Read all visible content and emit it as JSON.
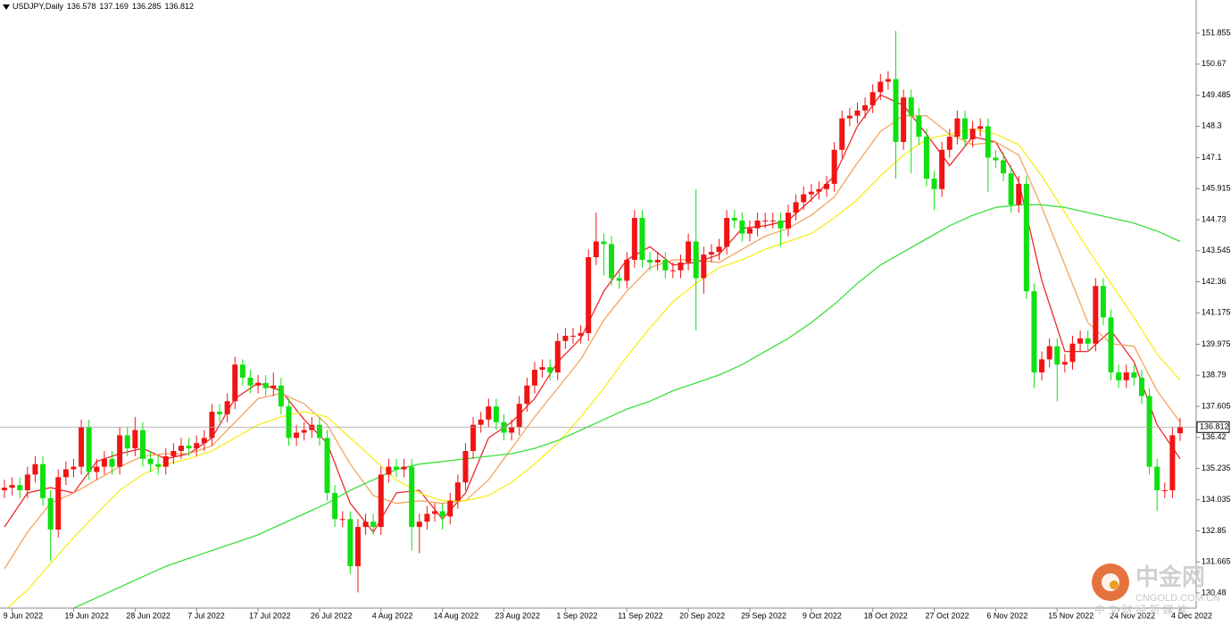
{
  "chart_data": {
    "type": "candlestick",
    "title": "USDJPY,Daily",
    "up_color": "#f01414",
    "down_color": "#10e010",
    "ylim": [
      129.9,
      153.12
    ],
    "yticks": [
      151.855,
      150.67,
      149.485,
      148.3,
      147.1,
      145.915,
      144.73,
      143.545,
      142.36,
      141.175,
      139.975,
      138.79,
      137.605,
      136.42,
      135.235,
      134.035,
      132.85,
      131.665,
      130.48
    ],
    "categories": [
      null,
      "9 Jun 2022",
      null,
      null,
      null,
      null,
      null,
      null,
      null,
      "19 Jun 2022",
      null,
      null,
      null,
      null,
      null,
      null,
      null,
      "28 Jun 2022",
      null,
      null,
      null,
      null,
      null,
      null,
      null,
      "7 Jul 2022",
      null,
      null,
      null,
      null,
      null,
      null,
      null,
      "17 Jul 2022",
      null,
      null,
      null,
      null,
      null,
      null,
      null,
      "26 Jul 2022",
      null,
      null,
      null,
      null,
      null,
      null,
      null,
      "4 Aug 2022",
      null,
      null,
      null,
      null,
      null,
      null,
      null,
      "14 Aug 2022",
      null,
      null,
      null,
      null,
      null,
      null,
      null,
      "23 Aug 2022",
      null,
      null,
      null,
      null,
      null,
      null,
      null,
      "1 Sep 2022",
      null,
      null,
      null,
      null,
      null,
      null,
      null,
      "11 Sep 2022",
      null,
      null,
      null,
      null,
      null,
      null,
      null,
      "20 Sep 2022",
      null,
      null,
      null,
      null,
      null,
      null,
      null,
      "29 Sep 2022",
      null,
      null,
      null,
      null,
      null,
      null,
      null,
      "9 Oct 2022",
      null,
      null,
      null,
      null,
      null,
      null,
      null,
      "18 Oct 2022",
      null,
      null,
      null,
      null,
      null,
      null,
      null,
      "27 Oct 2022",
      null,
      null,
      null,
      null,
      null,
      null,
      null,
      "6 Nov 2022",
      null,
      null,
      null,
      null,
      null,
      null,
      null,
      "15 Nov 2022",
      null,
      null,
      null,
      null,
      null,
      null,
      null,
      "24 Nov 2022",
      null,
      null,
      null,
      null,
      null,
      null,
      null,
      "4 Dec 2022"
    ],
    "open": [
      134.4,
      134.5,
      134.6,
      134.4,
      135.0,
      135.4,
      134.1,
      132.9,
      134.9,
      135.2,
      135.3,
      136.8,
      135.1,
      135.3,
      135.6,
      135.3,
      136.5,
      136.0,
      136.7,
      135.6,
      135.4,
      135.3,
      135.7,
      135.9,
      136.1,
      136.0,
      136.2,
      136.4,
      137.4,
      137.3,
      137.8,
      139.2,
      138.7,
      138.4,
      138.5,
      138.3,
      138.4,
      137.6,
      136.4,
      136.6,
      136.7,
      136.9,
      136.4,
      134.3,
      133.3,
      133.3,
      131.5,
      133.0,
      133.2,
      133.0,
      135.0,
      135.3,
      135.2,
      135.3,
      133.0,
      133.2,
      133.5,
      133.6,
      133.4,
      134.0,
      134.7,
      135.9,
      136.9,
      137.1,
      137.6,
      137.0,
      136.6,
      136.8,
      137.7,
      138.4,
      139.0,
      139.1,
      138.9,
      140.1,
      140.3,
      140.3,
      140.4,
      143.3,
      143.9,
      143.8,
      142.5,
      142.4,
      143.2,
      144.8,
      143.2,
      143.1,
      143.2,
      142.8,
      142.8,
      143.1,
      143.9,
      142.5,
      143.4,
      143.5,
      143.7,
      144.8,
      144.7,
      144.2,
      144.4,
      144.7,
      144.7,
      144.7,
      144.4,
      145.0,
      145.4,
      145.7,
      145.8,
      145.9,
      146.1,
      147.4,
      148.6,
      148.7,
      148.9,
      149.1,
      149.6,
      150.0,
      150.1,
      147.7,
      149.4,
      148.7,
      147.9,
      146.3,
      145.9,
      147.4,
      147.9,
      148.6,
      147.8,
      148.2,
      148.3,
      147.1,
      147.0,
      146.5,
      145.3,
      146.1,
      142.0,
      138.9,
      139.4,
      139.9,
      139.2,
      139.3,
      140.0,
      140.2,
      140.0,
      142.2,
      141.0,
      138.9,
      138.6,
      138.9,
      138.7,
      138.0,
      135.3,
      134.4,
      134.4,
      136.578
    ],
    "high": [
      134.8,
      134.9,
      134.9,
      135.3,
      135.7,
      135.7,
      134.4,
      135.2,
      135.5,
      135.6,
      137.1,
      137.1,
      135.6,
      135.9,
      135.9,
      136.8,
      136.8,
      137.2,
      137.0,
      135.9,
      135.7,
      136.0,
      136.2,
      136.4,
      136.4,
      136.5,
      136.7,
      137.7,
      137.7,
      138.1,
      139.5,
      139.4,
      139.0,
      138.8,
      138.8,
      138.9,
      138.7,
      137.9,
      136.9,
      137.0,
      137.2,
      137.2,
      136.7,
      134.6,
      133.6,
      133.6,
      133.3,
      133.5,
      133.5,
      135.3,
      135.6,
      135.6,
      135.6,
      135.6,
      133.5,
      133.8,
      133.9,
      133.9,
      134.3,
      135.0,
      136.2,
      137.2,
      137.4,
      137.9,
      137.9,
      137.3,
      137.1,
      138.0,
      138.7,
      139.3,
      139.4,
      139.4,
      140.4,
      140.6,
      140.6,
      140.7,
      143.6,
      145.0,
      144.2,
      144.1,
      142.8,
      143.5,
      145.1,
      145.1,
      143.5,
      143.5,
      143.5,
      143.1,
      143.4,
      144.2,
      145.9,
      143.7,
      143.8,
      144.0,
      145.1,
      145.1,
      145.0,
      144.7,
      145.0,
      145.0,
      145.0,
      145.0,
      145.3,
      145.7,
      146.0,
      146.1,
      146.2,
      146.4,
      147.7,
      148.9,
      149.0,
      149.2,
      149.4,
      149.9,
      150.3,
      150.4,
      151.94,
      149.7,
      149.7,
      149.0,
      148.2,
      146.6,
      147.7,
      148.2,
      148.9,
      148.9,
      148.5,
      148.6,
      148.6,
      147.4,
      147.3,
      146.8,
      146.4,
      146.4,
      142.3,
      139.7,
      140.2,
      140.2,
      139.6,
      140.3,
      140.5,
      140.5,
      142.5,
      142.5,
      141.3,
      139.2,
      139.2,
      139.2,
      139.0,
      138.3,
      135.6,
      134.7,
      136.8,
      137.169
    ],
    "low": [
      134.1,
      134.2,
      134.1,
      134.1,
      134.7,
      133.8,
      131.7,
      132.6,
      134.6,
      134.9,
      135.0,
      134.8,
      134.8,
      135.0,
      135.0,
      135.0,
      135.7,
      135.7,
      135.3,
      135.1,
      135.0,
      135.0,
      135.4,
      135.6,
      135.7,
      135.7,
      135.9,
      136.1,
      137.0,
      137.0,
      137.5,
      138.4,
      138.1,
      138.1,
      138.0,
      138.0,
      137.3,
      136.1,
      136.1,
      136.3,
      136.4,
      136.1,
      134.0,
      133.0,
      133.0,
      131.2,
      130.5,
      132.7,
      132.7,
      132.7,
      134.7,
      134.9,
      134.9,
      132.1,
      132.0,
      132.9,
      133.2,
      132.9,
      133.1,
      133.7,
      134.4,
      135.6,
      136.6,
      136.8,
      136.7,
      136.3,
      136.3,
      136.5,
      137.4,
      138.1,
      138.7,
      138.6,
      138.6,
      139.8,
      140.0,
      140.0,
      140.1,
      143.0,
      142.6,
      142.2,
      142.1,
      142.1,
      142.9,
      142.9,
      142.8,
      142.8,
      142.5,
      142.5,
      142.5,
      142.8,
      140.5,
      141.9,
      143.1,
      143.2,
      143.4,
      144.4,
      143.9,
      143.9,
      144.1,
      144.4,
      144.4,
      143.7,
      144.1,
      144.7,
      145.1,
      145.4,
      145.5,
      145.6,
      145.8,
      147.1,
      148.3,
      148.4,
      148.6,
      148.8,
      149.3,
      149.7,
      146.3,
      147.4,
      146.5,
      147.6,
      146.0,
      145.1,
      145.6,
      147.1,
      147.6,
      147.5,
      147.5,
      147.9,
      145.8,
      146.7,
      146.2,
      145.0,
      145.0,
      141.7,
      138.3,
      138.6,
      139.1,
      137.8,
      138.9,
      139.0,
      139.7,
      139.7,
      139.7,
      140.7,
      138.6,
      138.3,
      138.3,
      138.4,
      137.7,
      135.0,
      133.6,
      134.1,
      134.1,
      136.285
    ],
    "close": [
      134.5,
      134.6,
      134.4,
      135.0,
      135.4,
      134.1,
      132.9,
      134.9,
      135.2,
      135.3,
      136.8,
      135.1,
      135.3,
      135.6,
      135.3,
      136.5,
      136.0,
      136.7,
      135.6,
      135.4,
      135.3,
      135.7,
      135.9,
      136.1,
      136.0,
      136.2,
      136.4,
      137.4,
      137.3,
      137.8,
      139.2,
      138.7,
      138.4,
      138.5,
      138.3,
      138.4,
      137.6,
      136.4,
      136.6,
      136.7,
      136.9,
      136.4,
      134.3,
      133.3,
      133.3,
      131.5,
      133.0,
      133.2,
      133.0,
      135.0,
      135.3,
      135.2,
      135.3,
      133.0,
      133.2,
      133.5,
      133.6,
      133.4,
      134.0,
      134.7,
      135.9,
      136.9,
      137.1,
      137.6,
      137.0,
      136.6,
      136.8,
      137.7,
      138.4,
      139.0,
      139.1,
      138.9,
      140.1,
      140.3,
      140.3,
      140.4,
      143.3,
      143.9,
      143.8,
      142.5,
      142.4,
      143.2,
      144.8,
      143.2,
      143.1,
      143.2,
      142.8,
      142.8,
      143.1,
      143.9,
      142.5,
      143.4,
      143.5,
      143.7,
      144.8,
      144.7,
      144.2,
      144.4,
      144.7,
      144.7,
      144.7,
      144.4,
      145.0,
      145.4,
      145.7,
      145.8,
      145.9,
      146.1,
      147.4,
      148.6,
      148.7,
      148.9,
      149.1,
      149.6,
      150.0,
      150.1,
      147.7,
      149.4,
      148.7,
      147.9,
      146.3,
      145.9,
      147.4,
      147.9,
      148.6,
      147.8,
      148.2,
      148.3,
      147.1,
      147.0,
      146.5,
      145.3,
      146.1,
      142.0,
      138.9,
      139.4,
      139.9,
      139.2,
      139.3,
      140.0,
      140.2,
      140.0,
      142.2,
      141.0,
      138.9,
      138.6,
      138.9,
      138.7,
      138.0,
      135.3,
      134.4,
      134.4,
      136.5,
      136.812
    ],
    "series": [
      {
        "color": "#ec2a2a",
        "x": [
          0,
          3,
          6,
          9,
          12,
          15,
          18,
          21,
          24,
          27,
          30,
          33,
          36,
          39,
          42,
          45,
          48,
          51,
          54,
          57,
          60,
          63,
          66,
          69,
          72,
          75,
          78,
          81,
          84,
          87,
          90,
          93,
          96,
          99,
          102,
          105,
          108,
          111,
          114,
          117,
          120,
          123,
          126,
          129,
          132,
          135,
          138,
          141,
          144,
          147,
          150,
          153
        ],
        "values": [
          133.0,
          134.3,
          134.5,
          134.3,
          135.5,
          135.8,
          136.0,
          135.6,
          135.8,
          136.4,
          137.9,
          138.5,
          138.2,
          137.1,
          136.2,
          133.9,
          132.8,
          134.3,
          134.4,
          133.3,
          134.3,
          136.4,
          137.0,
          137.9,
          139.3,
          140.2,
          142.0,
          143.2,
          143.7,
          143.0,
          143.1,
          143.4,
          144.4,
          144.5,
          144.7,
          145.5,
          146.4,
          148.3,
          149.5,
          149.1,
          148.0,
          146.8,
          147.9,
          147.7,
          146.2,
          142.4,
          139.7,
          139.7,
          140.5,
          139.3,
          136.9,
          135.6
        ]
      },
      {
        "color": "#f4a460",
        "x": [
          0,
          3,
          6,
          9,
          12,
          15,
          18,
          21,
          24,
          27,
          30,
          33,
          36,
          39,
          42,
          45,
          48,
          51,
          54,
          57,
          60,
          63,
          66,
          69,
          72,
          75,
          78,
          81,
          84,
          87,
          90,
          93,
          96,
          99,
          102,
          105,
          108,
          111,
          114,
          117,
          120,
          123,
          126,
          129,
          132,
          135,
          138,
          141,
          144,
          147,
          150,
          153
        ],
        "values": [
          131.4,
          132.8,
          133.9,
          134.3,
          134.8,
          135.3,
          135.7,
          135.8,
          135.8,
          136.1,
          137.0,
          137.9,
          138.1,
          137.7,
          136.9,
          135.4,
          134.2,
          133.9,
          134.0,
          133.9,
          134.0,
          134.8,
          136.0,
          137.2,
          138.3,
          139.4,
          140.9,
          142.0,
          142.9,
          143.2,
          143.2,
          143.1,
          143.6,
          144.1,
          144.4,
          144.9,
          145.6,
          146.9,
          148.1,
          148.7,
          148.7,
          148.0,
          147.6,
          147.7,
          147.2,
          145.2,
          143.0,
          140.8,
          140.0,
          139.9,
          138.2,
          137.0
        ]
      },
      {
        "color": "#f6ee1e",
        "x": [
          0,
          3,
          6,
          9,
          12,
          15,
          18,
          21,
          24,
          27,
          30,
          33,
          36,
          39,
          42,
          45,
          48,
          51,
          54,
          57,
          60,
          63,
          66,
          69,
          72,
          75,
          78,
          81,
          84,
          87,
          90,
          93,
          96,
          99,
          102,
          105,
          108,
          111,
          114,
          117,
          120,
          123,
          126,
          129,
          132,
          135,
          138,
          141,
          144,
          147,
          150,
          153
        ],
        "values": [
          129.8,
          130.6,
          131.6,
          132.6,
          133.5,
          134.4,
          135.0,
          135.4,
          135.6,
          135.9,
          136.4,
          136.9,
          137.2,
          137.4,
          137.2,
          136.4,
          135.6,
          134.8,
          134.3,
          134.0,
          134.0,
          134.2,
          134.7,
          135.4,
          136.2,
          137.2,
          138.3,
          139.5,
          140.6,
          141.6,
          142.3,
          142.9,
          143.2,
          143.6,
          143.9,
          144.2,
          144.8,
          145.5,
          146.4,
          147.2,
          147.8,
          148.0,
          148.2,
          148.0,
          147.6,
          146.4,
          145.0,
          143.6,
          142.3,
          141.0,
          139.6,
          138.6
        ]
      },
      {
        "color": "#3ce03c",
        "x": [
          0,
          3,
          6,
          9,
          12,
          15,
          18,
          21,
          24,
          27,
          30,
          33,
          36,
          39,
          42,
          45,
          48,
          51,
          54,
          57,
          60,
          63,
          66,
          69,
          72,
          75,
          78,
          81,
          84,
          87,
          90,
          93,
          96,
          99,
          102,
          105,
          108,
          111,
          114,
          117,
          120,
          123,
          126,
          129,
          132,
          135,
          138,
          141,
          144,
          147,
          150,
          153
        ],
        "values": [
          null,
          null,
          null,
          129.9,
          130.3,
          130.7,
          131.1,
          131.5,
          131.8,
          132.1,
          132.4,
          132.7,
          133.1,
          133.5,
          133.9,
          134.4,
          134.8,
          135.2,
          135.4,
          135.5,
          135.6,
          135.7,
          135.8,
          136.0,
          136.3,
          136.7,
          137.1,
          137.5,
          137.8,
          138.2,
          138.5,
          138.8,
          139.2,
          139.7,
          140.2,
          140.8,
          141.5,
          142.3,
          143.0,
          143.5,
          144.0,
          144.5,
          144.9,
          145.2,
          145.3,
          145.3,
          145.2,
          145.0,
          144.8,
          144.6,
          144.3,
          143.9
        ]
      }
    ]
  },
  "watermark": {
    "name": "中金网",
    "domain": "CNGOLD.COM.CN",
    "tagline": "中 文 财 经 新 媒 体"
  }
}
